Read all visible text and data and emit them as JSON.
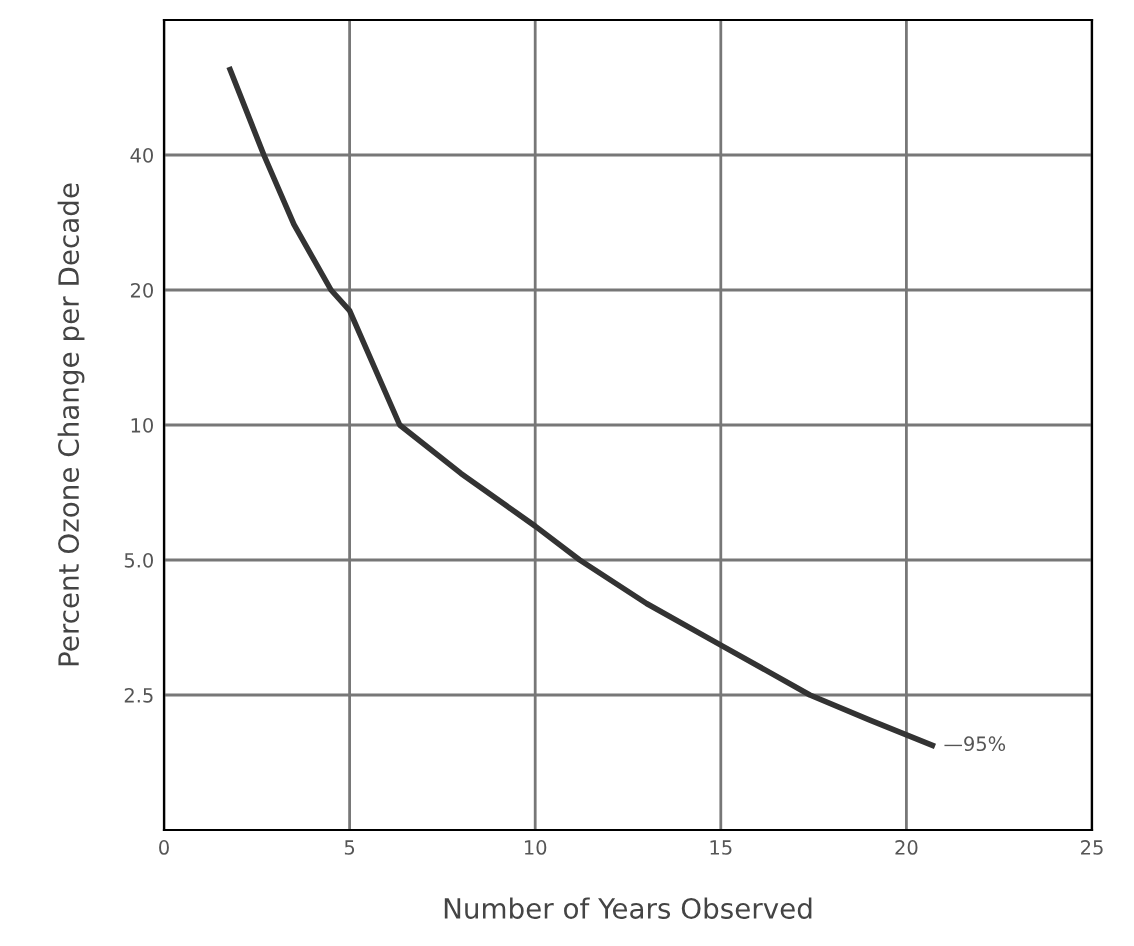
{
  "chart_data": {
    "type": "line",
    "xlabel": "Number of Years Observed",
    "ylabel": "Percent Ozone Change per Decade",
    "log": "y",
    "xlim": [
      0,
      25
    ],
    "ylim": [
      1.25,
      80
    ],
    "xticks": [
      0,
      5,
      10,
      15,
      20,
      25
    ],
    "yticks": [
      {
        "value": 2.5,
        "label": "2.5"
      },
      {
        "value": 5,
        "label": "5.0"
      },
      10,
      20,
      40
    ],
    "grid": true,
    "marker": "none",
    "line_style": "solid",
    "series": [
      {
        "color": "#333333",
        "x": [
          1.78,
          2.69,
          3.5,
          4.5,
          5,
          6.35,
          8,
          10,
          11.2,
          13,
          15,
          17.4,
          19,
          20.7
        ],
        "values": [
          62,
          40,
          28,
          20,
          18,
          10,
          7.8,
          5.95,
          5,
          4,
          3.23,
          2.5,
          2.2,
          1.93
        ]
      }
    ],
    "annotations": [
      {
        "text": "—95%",
        "x": 20.7,
        "y": 1.93
      }
    ]
  }
}
